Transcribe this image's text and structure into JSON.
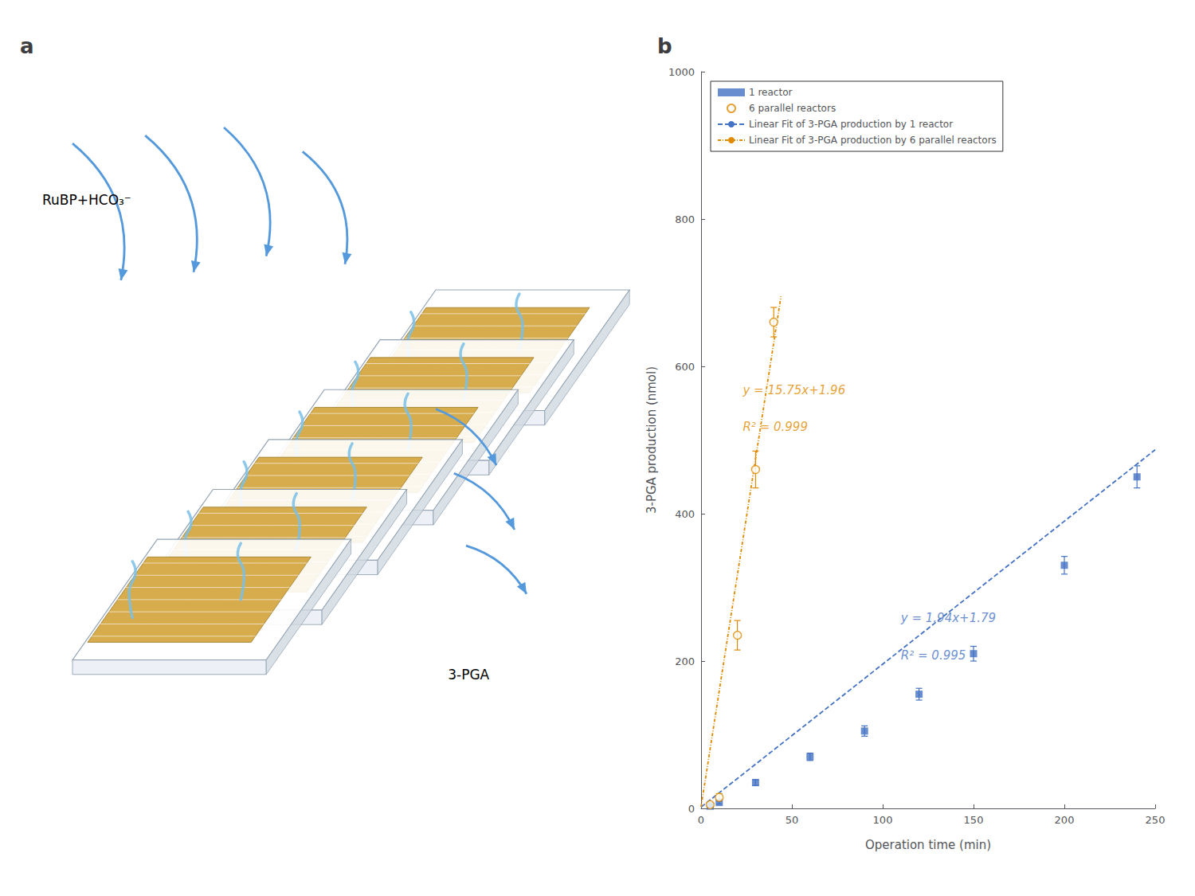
{
  "chart_data": [
    {
      "type": "diagram",
      "title": "a",
      "annotations": [
        {
          "text": "RuBP+HCO₃⁻"
        },
        {
          "text": "3-PGA"
        }
      ]
    },
    {
      "type": "scatter",
      "title": "b",
      "x_label": "Operation time (min)",
      "y_label": "3-PGA production (nmol)",
      "xlim": [
        0,
        250
      ],
      "ylim": [
        0,
        1000
      ],
      "xticks": [
        0,
        50,
        100,
        150,
        200,
        250
      ],
      "yticks": [
        0,
        200,
        400,
        600,
        800,
        1000
      ],
      "grid": false,
      "legend": "upper left",
      "series": [
        {
          "name": "1 reactor",
          "type": "scatter",
          "marker": "square",
          "color": "#4472C4",
          "x": [
            5,
            10,
            30,
            60,
            90,
            120,
            150,
            200,
            240
          ],
          "values": [
            3,
            8,
            35,
            70,
            105,
            155,
            210,
            330,
            450
          ],
          "yerr": [
            2,
            2,
            4,
            5,
            7,
            8,
            10,
            12,
            15
          ]
        },
        {
          "name": "6 parallel reactors",
          "type": "scatter",
          "marker": "hollow circle",
          "color": "#E08A00",
          "x": [
            5,
            10,
            20,
            30,
            40
          ],
          "values": [
            5,
            15,
            235,
            460,
            660
          ],
          "yerr": [
            3,
            5,
            20,
            25,
            20
          ]
        },
        {
          "name": "Linear Fit of 3-PGA production by 1 reactor",
          "type": "line",
          "line_style": "dashed",
          "color": "#4472C4",
          "x": [
            0,
            250
          ],
          "values": [
            1.79,
            486.79
          ]
        },
        {
          "name": "Linear Fit of 3-PGA production by 6 parallel reactors",
          "type": "line",
          "line_style": "dashdot",
          "color": "#E08A00",
          "x": [
            0,
            44
          ],
          "values": [
            1.96,
            694.96
          ]
        }
      ],
      "annotations": [
        {
          "text": "y = 15.75x+1.96",
          "x": 23,
          "y": 560,
          "color": "#E08A00"
        },
        {
          "text": "R² = 0.999",
          "x": 23,
          "y": 510,
          "color": "#E08A00"
        },
        {
          "text": "y = 1.94x+1.79",
          "x": 110,
          "y": 250,
          "color": "#4472C4"
        },
        {
          "text": "R² = 0.995",
          "x": 110,
          "y": 200,
          "color": "#4472C4"
        }
      ]
    }
  ]
}
